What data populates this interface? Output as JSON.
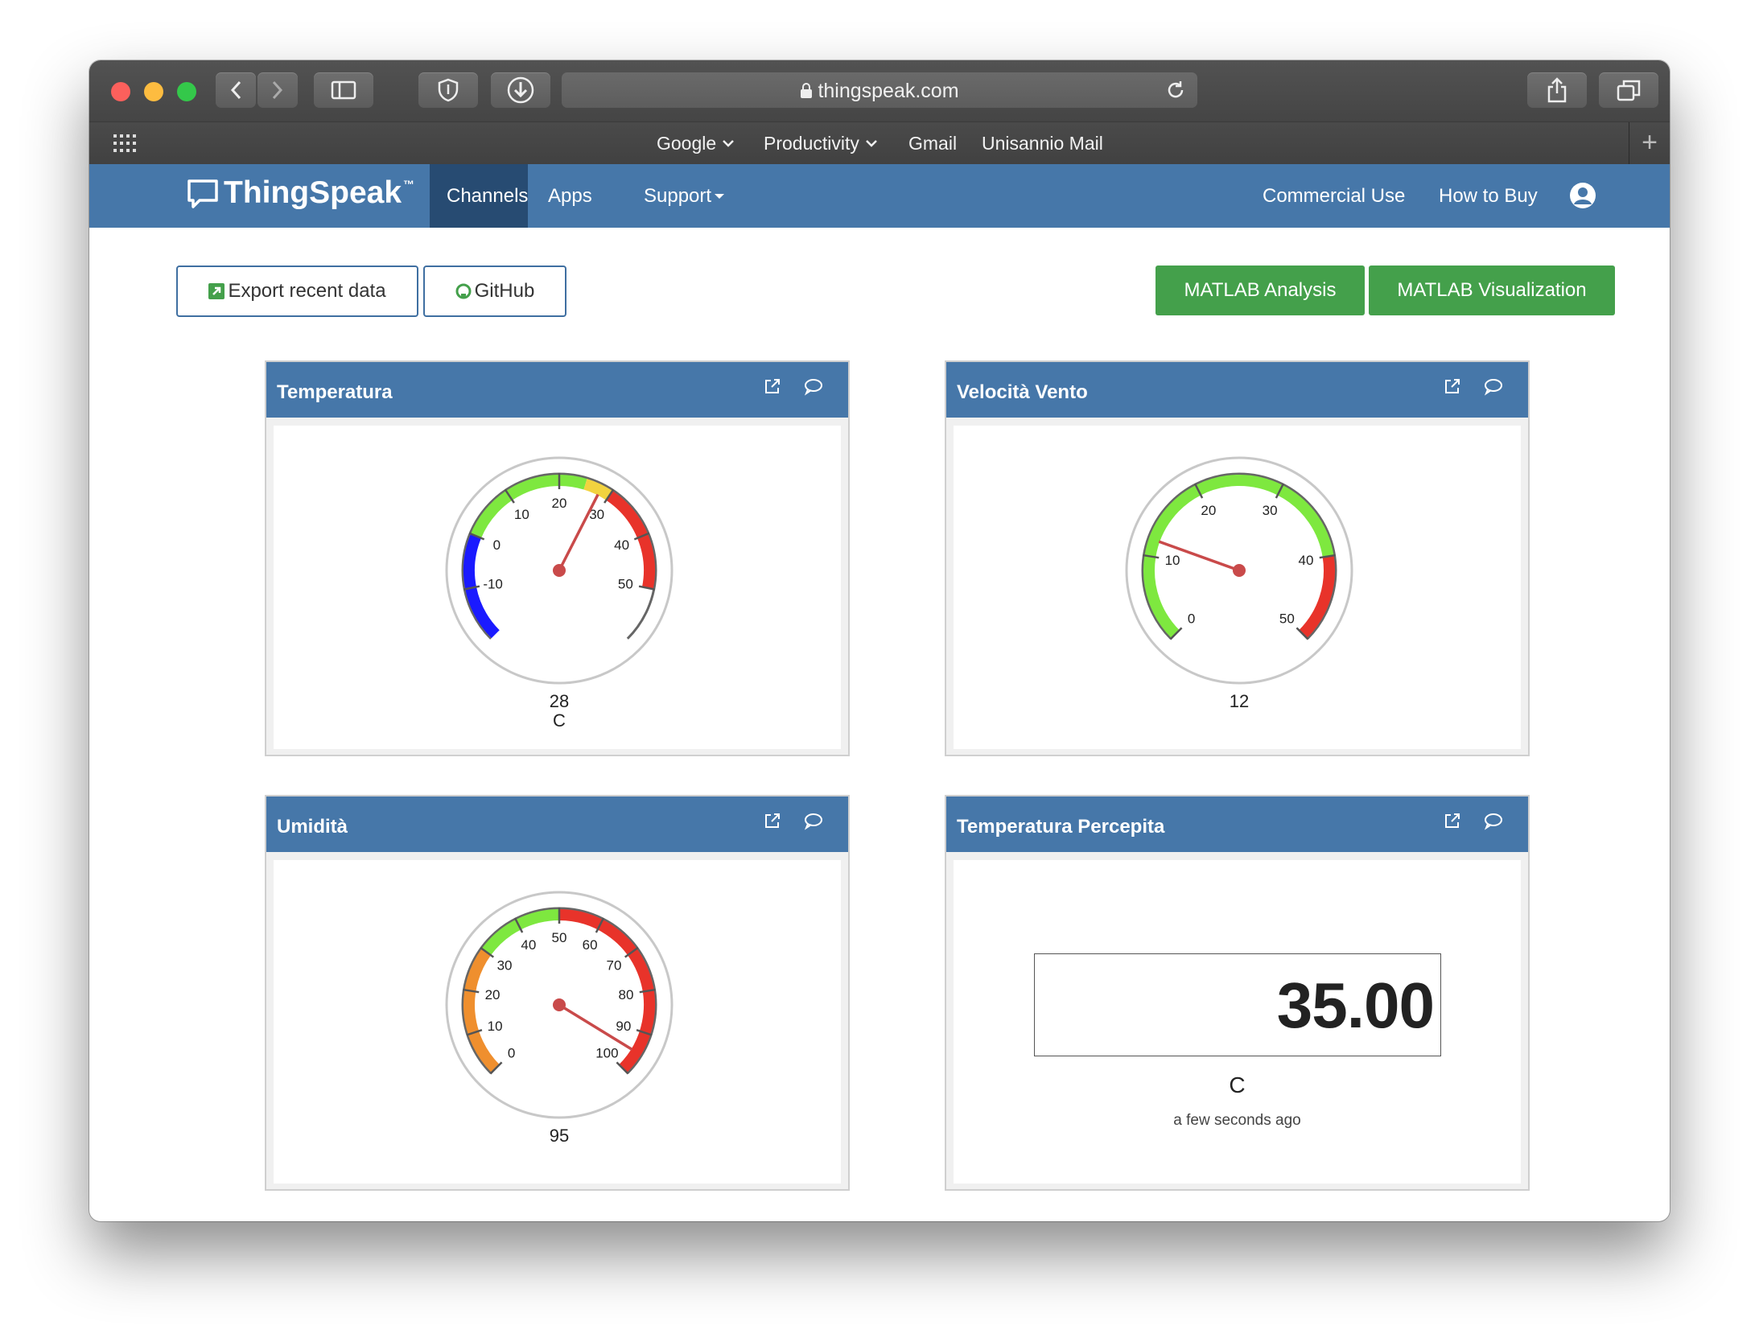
{
  "browser": {
    "url": "thingspeak.com",
    "bookmarks": [
      "Google",
      "Productivity",
      "Gmail",
      "Unisannio Mail"
    ]
  },
  "site": {
    "brand": "ThingSpeak",
    "brand_tm": "™",
    "nav": [
      "Channels",
      "Apps",
      "Support"
    ],
    "nav_right": [
      "Commercial Use",
      "How to Buy"
    ]
  },
  "actions": {
    "export": "Export recent data",
    "github": "GitHub",
    "matlab_analysis": "MATLAB Analysis",
    "matlab_visualization": "MATLAB Visualization"
  },
  "colors": {
    "navbar": "#4677a9",
    "navbar_active": "#274b72",
    "green_button": "#44a04b",
    "band_blue": "#1a1aff",
    "band_green": "#7ee83f",
    "band_yellow": "#f2d33f",
    "band_red": "#e8332a",
    "band_orange": "#ef8f2e",
    "needle": "#c94a4a"
  },
  "widgets": [
    {
      "title": "Temperatura",
      "type": "gauge",
      "min": -20,
      "max": 60,
      "ticks": [
        -10,
        0,
        10,
        20,
        30,
        40,
        50
      ],
      "value": 28,
      "display": "28",
      "units": "C",
      "bands": [
        {
          "from": -20,
          "to": 0,
          "color": "#1a1aff"
        },
        {
          "from": 0,
          "to": 25,
          "color": "#7ee83f"
        },
        {
          "from": 25,
          "to": 30,
          "color": "#f2d33f"
        },
        {
          "from": 30,
          "to": 50,
          "color": "#e8332a"
        }
      ]
    },
    {
      "title": "Velocità Vento",
      "type": "gauge",
      "min": 0,
      "max": 50,
      "ticks": [
        0,
        10,
        20,
        30,
        40,
        50
      ],
      "value": 12,
      "display": "12",
      "units": "",
      "bands": [
        {
          "from": 0,
          "to": 40,
          "color": "#7ee83f"
        },
        {
          "from": 40,
          "to": 50,
          "color": "#e8332a"
        }
      ]
    },
    {
      "title": "Umidità",
      "type": "gauge",
      "min": 0,
      "max": 100,
      "ticks": [
        0,
        10,
        20,
        30,
        40,
        50,
        60,
        70,
        80,
        90,
        100
      ],
      "value": 95,
      "display": "95",
      "units": "",
      "bands": [
        {
          "from": 0,
          "to": 30,
          "color": "#ef8f2e"
        },
        {
          "from": 30,
          "to": 50,
          "color": "#7ee83f"
        },
        {
          "from": 50,
          "to": 100,
          "color": "#e8332a"
        }
      ]
    },
    {
      "title": "Temperatura Percepita",
      "type": "numeric",
      "value": "35.00",
      "units": "C",
      "updated": "a few seconds ago"
    }
  ]
}
